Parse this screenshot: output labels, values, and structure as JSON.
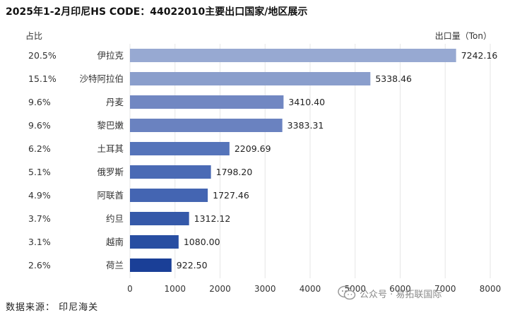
{
  "title": "2025年1-2月印尼HS CODE：44022010主要出口国家/地区展示",
  "share_header": "占比",
  "unit_label": "出口量（Ton）",
  "source": "数据来源：  印尼海关",
  "watermark": {
    "text": "公众号 · 易拓联国际",
    "icon": "wechat-icon"
  },
  "chart_data": {
    "type": "bar",
    "orientation": "horizontal",
    "categories": [
      "伊拉克",
      "沙特阿拉伯",
      "丹麦",
      "黎巴嫩",
      "土耳其",
      "俄罗斯",
      "阿联酋",
      "约旦",
      "越南",
      "荷兰"
    ],
    "values": [
      7242.16,
      5338.46,
      3410.4,
      3383.31,
      2209.69,
      1798.2,
      1727.46,
      1312.12,
      1080.0,
      922.5
    ],
    "value_labels": [
      "7242.16",
      "5338.46",
      "3410.40",
      "3383.31",
      "2209.69",
      "1798.20",
      "1727.46",
      "1312.12",
      "1080.00",
      "922.50"
    ],
    "shares": [
      "20.5%",
      "15.1%",
      "9.6%",
      "9.6%",
      "6.2%",
      "5.1%",
      "4.9%",
      "3.7%",
      "3.1%",
      "2.6%"
    ],
    "xlim": [
      0,
      8000
    ],
    "x_ticks": [
      0,
      1000,
      2000,
      3000,
      4000,
      5000,
      6000,
      7000,
      8000
    ],
    "grid": "vertical",
    "bar_colors": [
      "#97a9d2",
      "#8a9ecc",
      "#7187c2",
      "#6a82c0",
      "#5574ba",
      "#4a6ab5",
      "#4465b2",
      "#3559a9",
      "#284ea2",
      "#1a3f97"
    ]
  }
}
